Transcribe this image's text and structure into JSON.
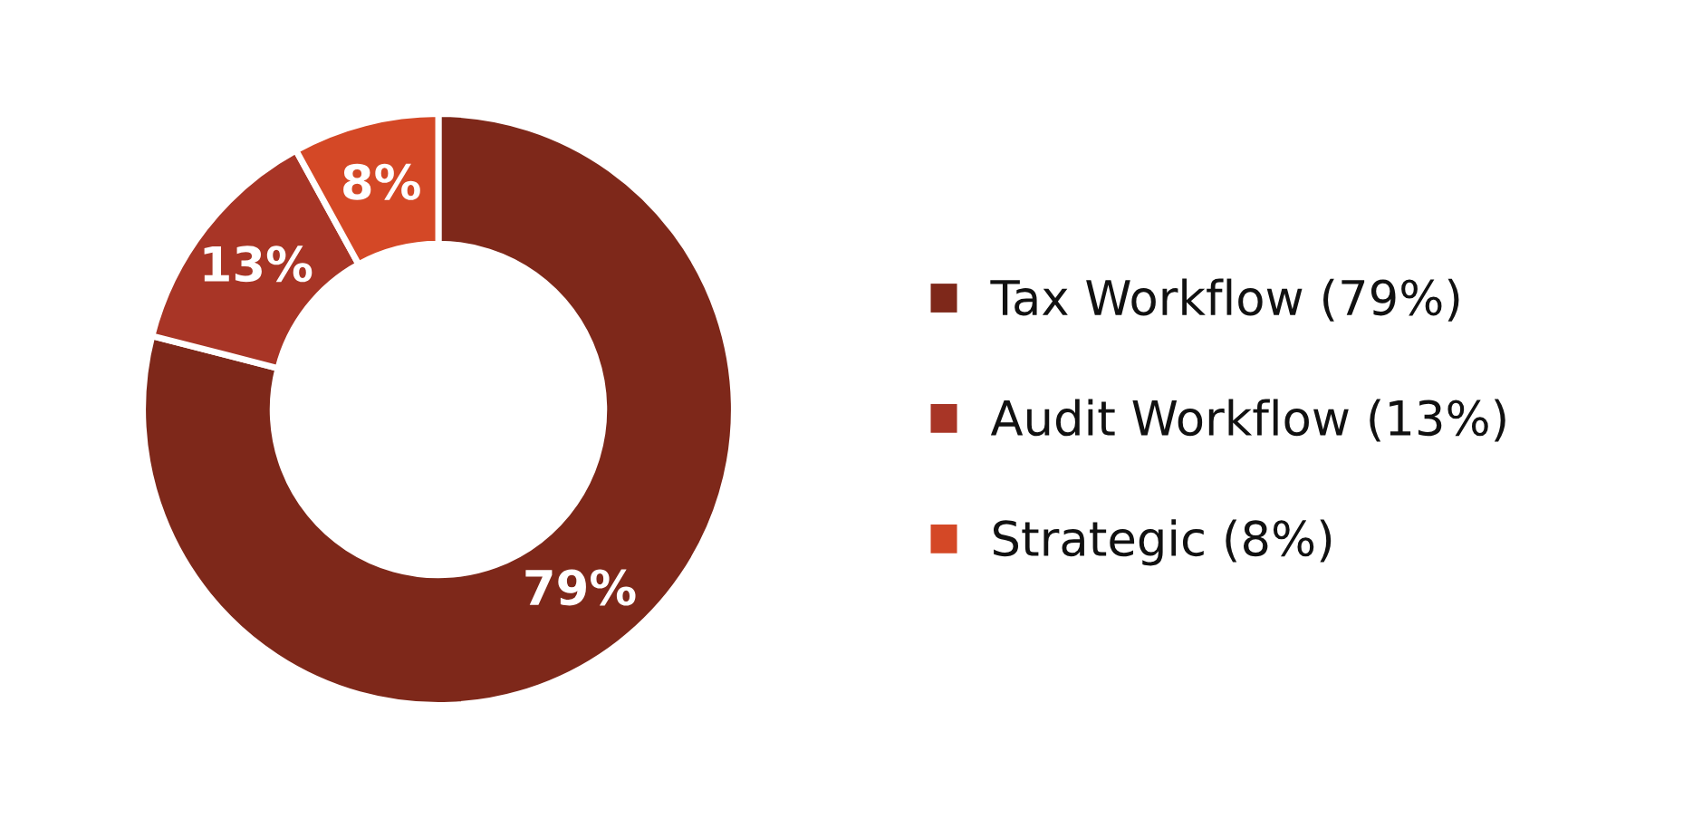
{
  "chart_data": {
    "type": "donut",
    "categories": [
      "Tax Workflow (79%)",
      "Audit Workflow (13%)",
      "Strategic (8%)"
    ],
    "values": [
      79,
      13,
      8
    ],
    "colors": [
      "#7e281a",
      "#a83526",
      "#d44826"
    ],
    "value_labels": [
      "79%",
      "13%",
      "8%"
    ],
    "legend": "right"
  }
}
